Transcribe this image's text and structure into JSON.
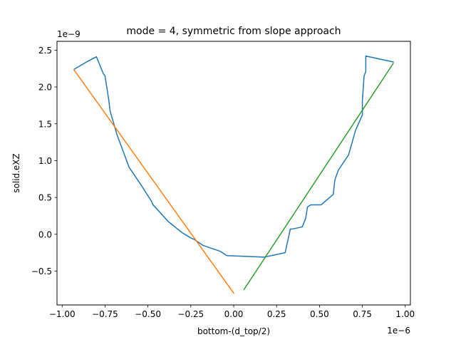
{
  "chart_data": {
    "type": "line",
    "title": "mode = 4, symmetric from slope approach",
    "xlabel": "bottom-(d_top/2)",
    "ylabel": "solid.eXZ",
    "x_offset_text": "1e−6",
    "y_offset_text": "1e−9",
    "x_scale": 1e-06,
    "y_scale": 1e-09,
    "xlim": [
      -1.03,
      1.03
    ],
    "ylim": [
      -0.96,
      2.62
    ],
    "x_ticks": [
      -1.0,
      -0.75,
      -0.5,
      -0.25,
      0.0,
      0.25,
      0.5,
      0.75,
      1.0
    ],
    "x_tick_labels": [
      "−1.00",
      "−0.75",
      "−0.50",
      "−0.25",
      "0.00",
      "0.25",
      "0.50",
      "0.75",
      "1.00"
    ],
    "y_ticks": [
      -0.5,
      0.0,
      0.5,
      1.0,
      1.5,
      2.0,
      2.5
    ],
    "y_tick_labels": [
      "−0.5",
      "0.0",
      "0.5",
      "1.0",
      "1.5",
      "2.0",
      "2.5"
    ],
    "grid": false,
    "series": [
      {
        "color": "#1f77b4",
        "x": [
          -0.93,
          -0.85,
          -0.8,
          -0.76,
          -0.75,
          -0.73,
          -0.72,
          -0.68,
          -0.61,
          -0.54,
          -0.48,
          -0.47,
          -0.38,
          -0.3,
          -0.25,
          -0.23,
          -0.18,
          -0.08,
          -0.04,
          0.18,
          0.3,
          0.33,
          0.34,
          0.4,
          0.42,
          0.43,
          0.45,
          0.51,
          0.58,
          0.59,
          0.61,
          0.67,
          0.71,
          0.75,
          0.75,
          0.76,
          0.77,
          0.77,
          0.93
        ],
        "y": [
          2.24,
          2.35,
          2.41,
          2.18,
          2.15,
          1.85,
          1.67,
          1.35,
          0.91,
          0.67,
          0.45,
          0.4,
          0.17,
          0.02,
          -0.05,
          -0.07,
          -0.15,
          -0.23,
          -0.29,
          -0.31,
          -0.25,
          0.07,
          0.07,
          0.1,
          0.22,
          0.37,
          0.4,
          0.4,
          0.54,
          0.74,
          0.87,
          1.08,
          1.41,
          1.62,
          1.81,
          2.15,
          2.21,
          2.42,
          2.34
        ]
      },
      {
        "color": "#ff7f0e",
        "x": [
          -0.93,
          0.0
        ],
        "y": [
          2.23,
          -0.8
        ]
      },
      {
        "color": "#2ca02c",
        "x": [
          0.06,
          0.93
        ],
        "y": [
          -0.75,
          2.32
        ]
      }
    ]
  }
}
